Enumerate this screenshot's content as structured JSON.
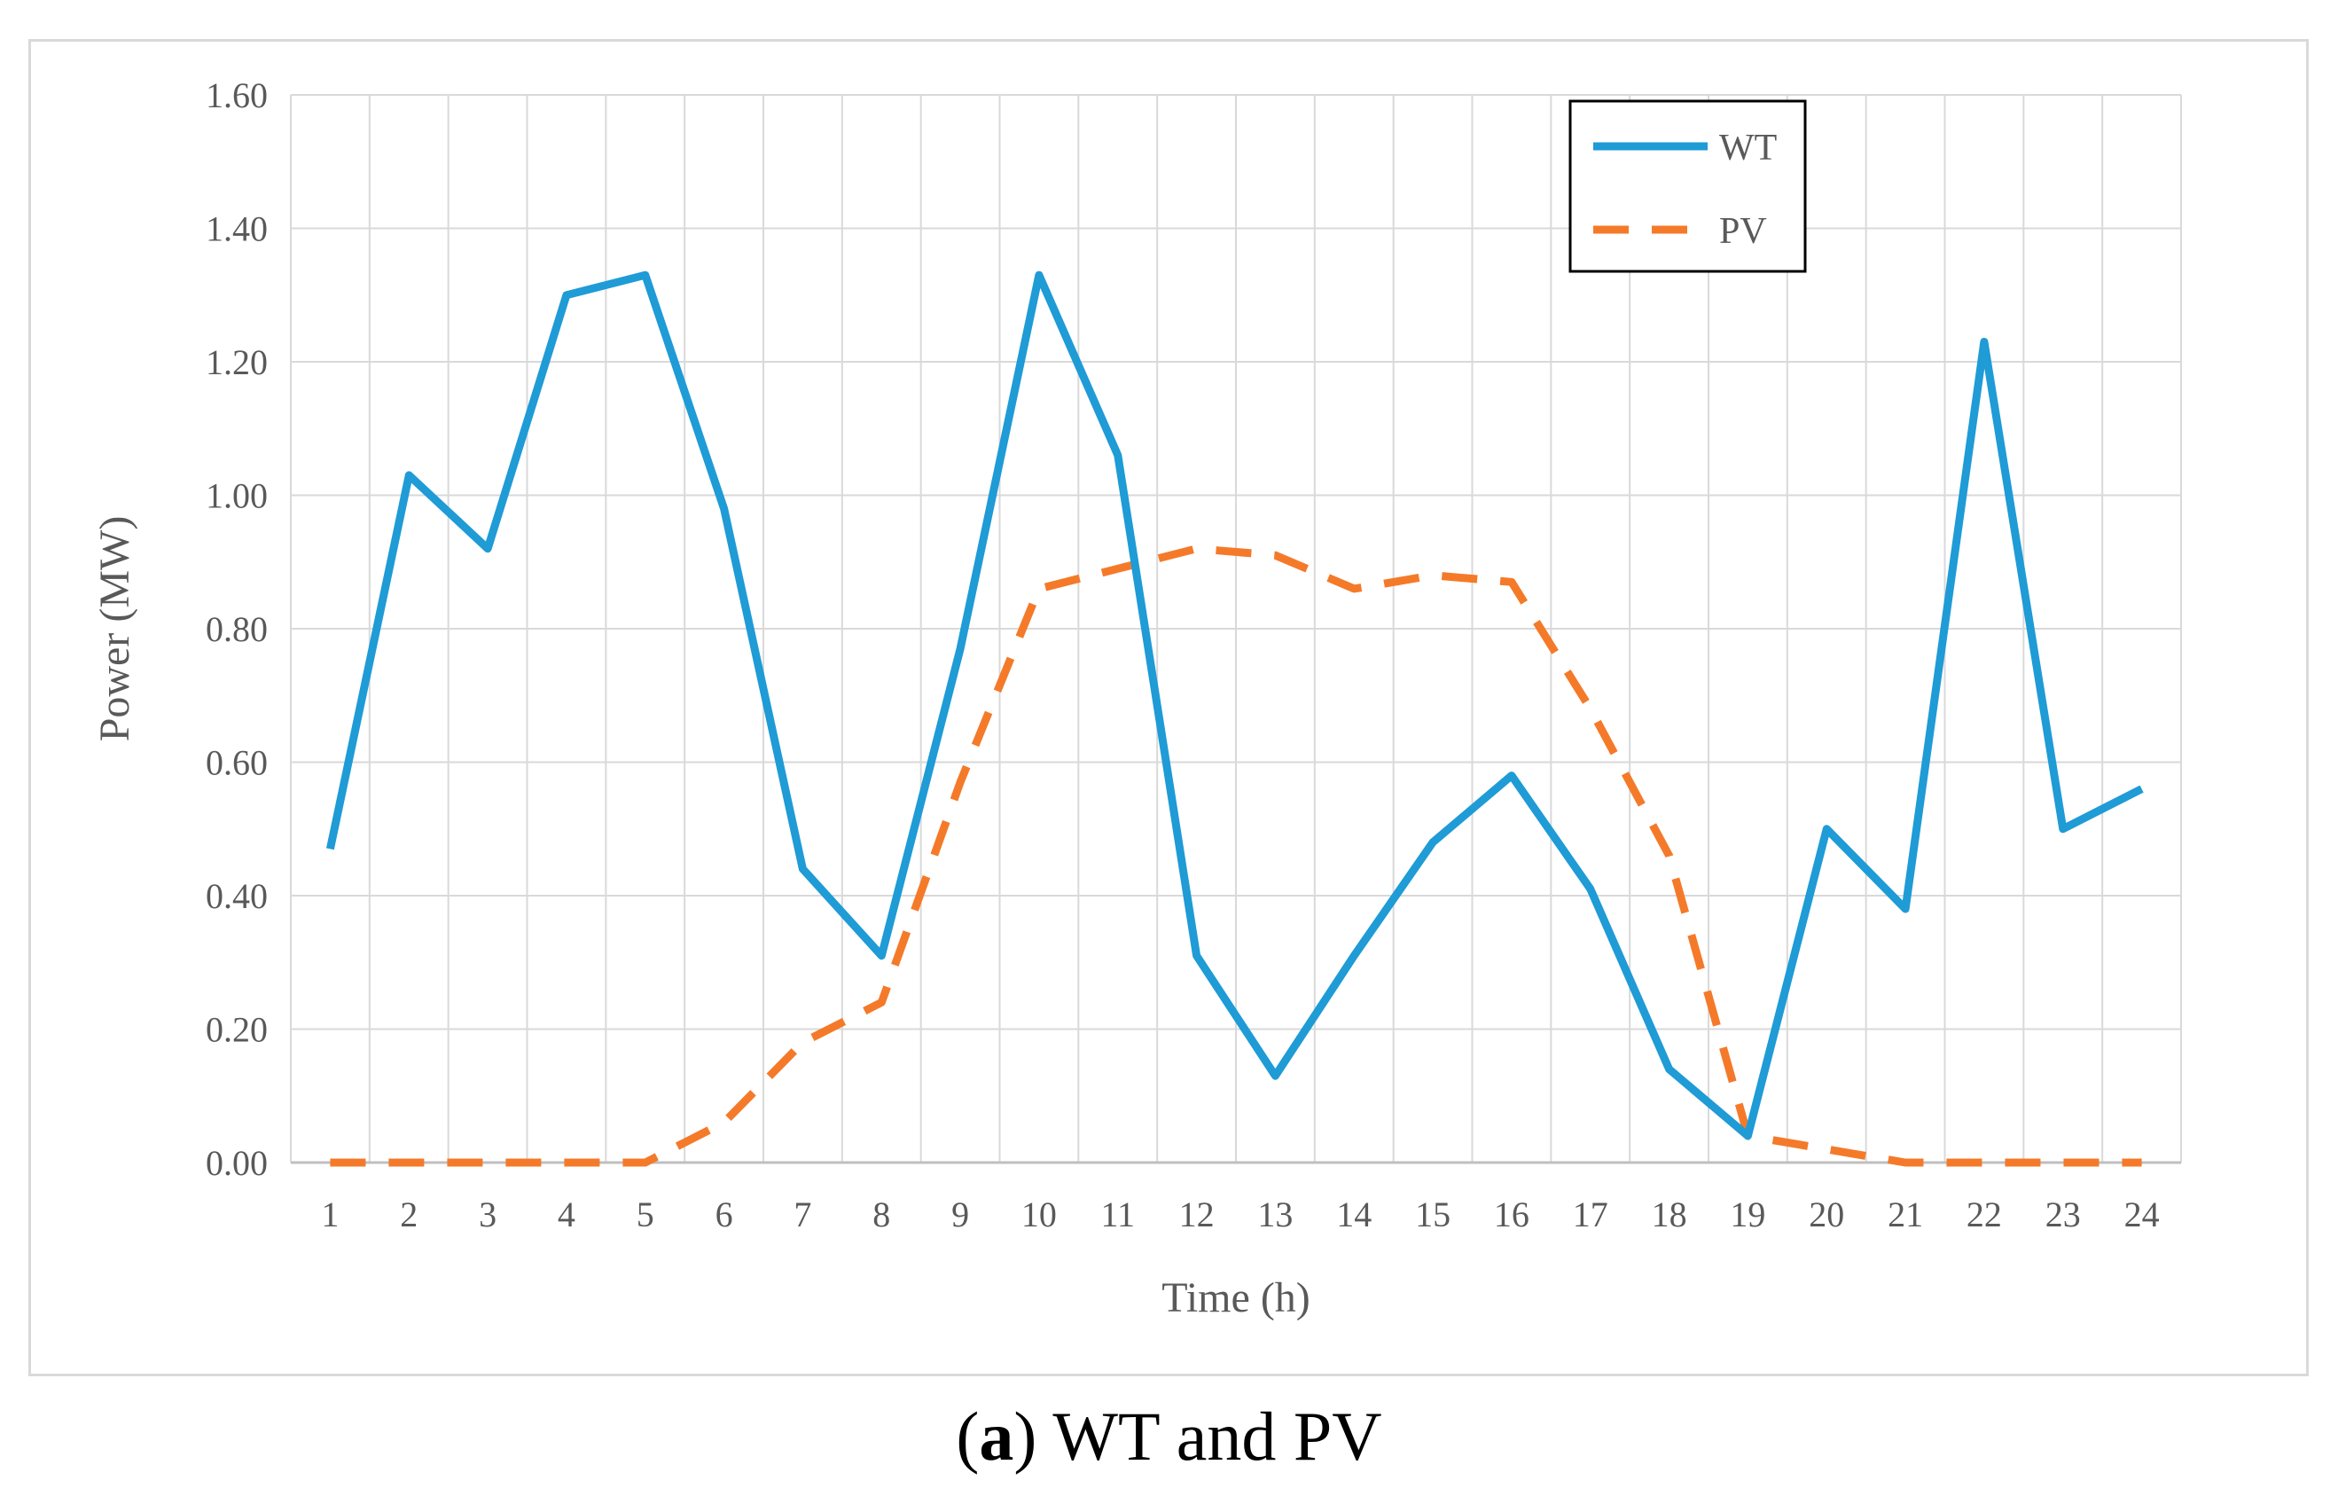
{
  "chart_data": {
    "type": "line",
    "title": "",
    "xlabel": "Time (h)",
    "ylabel": "Power (MW)",
    "categories": [
      "1",
      "2",
      "3",
      "4",
      "5",
      "6",
      "7",
      "8",
      "9",
      "10",
      "11",
      "12",
      "13",
      "14",
      "15",
      "16",
      "17",
      "18",
      "19",
      "20",
      "21",
      "22",
      "23",
      "24"
    ],
    "ylim": [
      0,
      1.6
    ],
    "yticks": [
      "0.00",
      "0.20",
      "0.40",
      "0.60",
      "0.80",
      "1.00",
      "1.20",
      "1.40",
      "1.60"
    ],
    "grid": true,
    "legend_position": "top-right",
    "series": [
      {
        "name": "WT",
        "style": "solid",
        "color": "#1f9bd6",
        "values": [
          0.47,
          1.03,
          0.92,
          1.3,
          1.33,
          0.98,
          0.44,
          0.31,
          0.77,
          1.33,
          1.06,
          0.31,
          0.13,
          0.31,
          0.48,
          0.58,
          0.41,
          0.14,
          0.04,
          0.5,
          0.38,
          1.23,
          0.5,
          0.56
        ]
      },
      {
        "name": "PV",
        "style": "dashed",
        "color": "#f47a2a",
        "values": [
          0.0,
          0.0,
          0.0,
          0.0,
          0.0,
          0.06,
          0.18,
          0.24,
          0.57,
          0.86,
          0.89,
          0.92,
          0.91,
          0.86,
          0.88,
          0.87,
          0.68,
          0.46,
          0.04,
          0.02,
          0.0,
          0.0,
          0.0,
          0.0
        ]
      }
    ]
  },
  "caption": {
    "open": "(",
    "letter": "a",
    "rest": ") WT and PV"
  }
}
